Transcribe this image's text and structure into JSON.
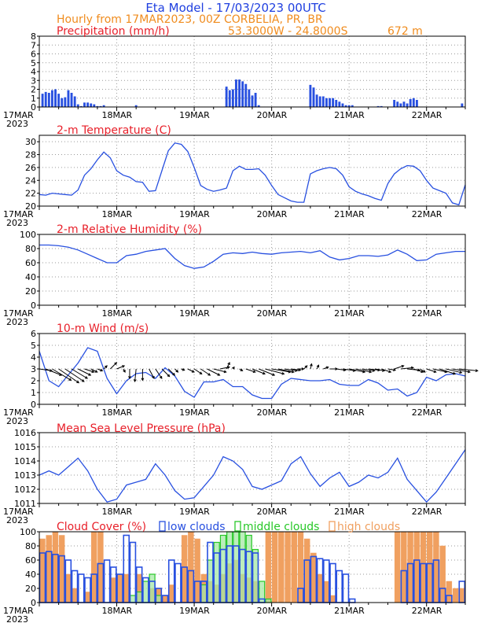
{
  "header": {
    "title": "Eta Model - 17/03/2023 00UTC",
    "subtitle": "Hourly from 17MAR2023, 00Z  CORBELIA, PR, BR",
    "location": "53.3000W - 24.8000S",
    "elevation": "672  m"
  },
  "colors": {
    "title": "#2040e0",
    "orange": "#f08c1e",
    "red": "#e8202a",
    "line": "#2850e0",
    "bar": "#2850e0",
    "low": "#2850e0",
    "mid": "#28c828",
    "high": "#f0a060",
    "grid": "#9a9a9a",
    "arrow": "#000000"
  },
  "x_axis": {
    "hours": 132,
    "day_labels": [
      "17MAR",
      "18MAR",
      "19MAR",
      "20MAR",
      "21MAR",
      "22MAR"
    ],
    "day_hours": [
      0,
      24,
      48,
      72,
      96,
      120
    ],
    "year_label": "2023"
  },
  "chart_data": [
    {
      "id": "precip",
      "type": "bar",
      "title": "Precipitation (mm/h)",
      "ylabel": "mm/h",
      "ylim": [
        0,
        8
      ],
      "yticks": [
        0,
        1,
        2,
        3,
        4,
        5,
        6,
        7,
        8
      ],
      "x": [
        1,
        2,
        3,
        4,
        5,
        6,
        7,
        8,
        9,
        10,
        11,
        12,
        13,
        14,
        15,
        16,
        17,
        18,
        19,
        20,
        30,
        58,
        59,
        60,
        61,
        62,
        63,
        64,
        65,
        66,
        67,
        68,
        84,
        85,
        86,
        87,
        88,
        89,
        90,
        91,
        92,
        93,
        94,
        95,
        96,
        97,
        105,
        106,
        110,
        111,
        112,
        113,
        114,
        115,
        116,
        117,
        131
      ],
      "values": [
        1.5,
        1.7,
        1.6,
        1.9,
        2.0,
        1.5,
        1.0,
        1.1,
        1.9,
        1.6,
        1.2,
        0.3,
        0.1,
        0.5,
        0.5,
        0.4,
        0.3,
        0.1,
        0.1,
        0.2,
        0.2,
        2.3,
        1.9,
        2.0,
        3.1,
        3.1,
        2.9,
        2.6,
        2.0,
        1.3,
        1.6,
        0.2,
        2.5,
        2.2,
        1.4,
        1.2,
        1.2,
        1.0,
        1.0,
        1.0,
        0.8,
        0.6,
        0.4,
        0.2,
        0.2,
        0.2,
        0.1,
        0.1,
        0.8,
        0.6,
        0.4,
        0.6,
        0.4,
        0.9,
        1.0,
        0.8,
        0.4
      ]
    },
    {
      "id": "temperature",
      "type": "line",
      "title": "2-m Temperature (C)",
      "ylim": [
        20,
        31
      ],
      "yticks": [
        20,
        22,
        24,
        26,
        28,
        30
      ],
      "x": [
        0,
        2,
        4,
        6,
        8,
        10,
        12,
        14,
        16,
        18,
        20,
        22,
        24,
        26,
        28,
        30,
        32,
        34,
        36,
        38,
        40,
        42,
        44,
        46,
        48,
        50,
        52,
        54,
        56,
        58,
        60,
        62,
        64,
        66,
        68,
        70,
        72,
        74,
        76,
        78,
        80,
        82,
        84,
        86,
        88,
        90,
        92,
        94,
        96,
        98,
        100,
        102,
        104,
        106,
        108,
        110,
        112,
        114,
        116,
        118,
        120,
        122,
        124,
        126,
        128,
        130,
        132
      ],
      "values": [
        21.8,
        21.7,
        22.0,
        21.9,
        21.8,
        21.7,
        22.5,
        24.8,
        25.8,
        27.2,
        28.4,
        27.5,
        25.5,
        24.8,
        24.5,
        23.8,
        23.7,
        22.3,
        22.4,
        25.5,
        28.6,
        29.8,
        29.6,
        28.5,
        26.0,
        23.2,
        22.6,
        22.3,
        22.5,
        22.8,
        25.5,
        26.2,
        25.7,
        25.7,
        25.8,
        24.8,
        23.2,
        21.8,
        21.3,
        20.8,
        20.6,
        20.6,
        25.0,
        25.5,
        25.8,
        26.0,
        25.8,
        24.8,
        23.0,
        22.3,
        21.9,
        21.6,
        21.2,
        20.9,
        23.5,
        25.0,
        25.8,
        26.3,
        26.2,
        25.5,
        24.0,
        22.8,
        22.4,
        22.0,
        20.5,
        20.2,
        23.3
      ]
    },
    {
      "id": "humidity",
      "type": "line",
      "title": "2-m Relative Humidity (%)",
      "ylim": [
        0,
        100
      ],
      "yticks": [
        0,
        20,
        40,
        60,
        80,
        100
      ],
      "x": [
        0,
        3,
        6,
        9,
        12,
        15,
        18,
        21,
        24,
        27,
        30,
        33,
        36,
        39,
        42,
        45,
        48,
        51,
        54,
        57,
        60,
        63,
        66,
        69,
        72,
        75,
        78,
        81,
        84,
        87,
        90,
        93,
        96,
        99,
        102,
        105,
        108,
        111,
        114,
        117,
        120,
        123,
        126,
        129,
        132
      ],
      "values": [
        85,
        85,
        84,
        82,
        78,
        72,
        66,
        60,
        60,
        70,
        72,
        76,
        78,
        80,
        66,
        56,
        52,
        54,
        62,
        72,
        74,
        73,
        75,
        73,
        72,
        74,
        75,
        76,
        74,
        77,
        68,
        64,
        66,
        70,
        70,
        69,
        71,
        78,
        72,
        63,
        64,
        72,
        74,
        76,
        76
      ]
    },
    {
      "id": "wind",
      "type": "line",
      "title": "10-m Wind (m/s)",
      "ylim": [
        0,
        6
      ],
      "yticks": [
        0,
        1,
        2,
        3,
        4,
        5,
        6
      ],
      "x": [
        0,
        3,
        6,
        9,
        12,
        15,
        18,
        21,
        24,
        27,
        30,
        33,
        36,
        39,
        42,
        45,
        48,
        51,
        54,
        57,
        60,
        63,
        66,
        69,
        72,
        75,
        78,
        81,
        84,
        87,
        90,
        93,
        96,
        99,
        102,
        105,
        108,
        111,
        114,
        117,
        120,
        123,
        126,
        129,
        132
      ],
      "values": [
        4.5,
        2.0,
        1.5,
        2.5,
        3.5,
        4.8,
        4.5,
        2.2,
        0.9,
        2.0,
        2.6,
        2.7,
        2.2,
        3.1,
        2.4,
        1.1,
        0.6,
        1.9,
        1.9,
        2.1,
        1.5,
        1.5,
        0.8,
        0.5,
        0.5,
        1.7,
        2.2,
        2.1,
        2.0,
        2.0,
        2.1,
        1.7,
        1.6,
        1.6,
        2.1,
        1.8,
        1.2,
        1.3,
        0.7,
        1.0,
        2.3,
        2.0,
        2.5,
        2.6,
        2.4
      ]
    },
    {
      "id": "pressure",
      "type": "line",
      "title": "Mean Sea Level Pressure (hPa)",
      "ylim": [
        1011,
        1016
      ],
      "yticks": [
        1011,
        1012,
        1013,
        1014,
        1015,
        1016
      ],
      "x": [
        0,
        3,
        6,
        9,
        12,
        15,
        18,
        21,
        24,
        27,
        30,
        33,
        36,
        39,
        42,
        45,
        48,
        51,
        54,
        57,
        60,
        63,
        66,
        69,
        72,
        75,
        78,
        81,
        84,
        87,
        90,
        93,
        96,
        99,
        102,
        105,
        108,
        111,
        114,
        117,
        120,
        123,
        126,
        129,
        132
      ],
      "values": [
        1013.0,
        1013.3,
        1013.0,
        1013.6,
        1014.2,
        1013.3,
        1012.0,
        1011.1,
        1011.3,
        1012.3,
        1012.5,
        1012.7,
        1013.8,
        1013.0,
        1011.9,
        1011.3,
        1011.4,
        1012.2,
        1013.0,
        1014.3,
        1014.0,
        1013.4,
        1012.2,
        1012.0,
        1012.3,
        1012.6,
        1013.8,
        1014.3,
        1013.1,
        1012.2,
        1012.8,
        1013.2,
        1012.2,
        1012.5,
        1013.0,
        1012.8,
        1013.2,
        1014.2,
        1012.7,
        1011.9,
        1011.1,
        1011.8,
        1012.8,
        1013.8,
        1014.8
      ]
    },
    {
      "id": "clouds",
      "type": "bar",
      "title": "Cloud Cover (%)",
      "ylim": [
        0,
        100
      ],
      "yticks": [
        0,
        20,
        40,
        60,
        80,
        100
      ],
      "legend": [
        "low clouds",
        "middle clouds",
        "high clouds"
      ],
      "x": [
        0,
        2,
        4,
        6,
        8,
        10,
        12,
        14,
        16,
        18,
        20,
        22,
        24,
        26,
        28,
        30,
        32,
        34,
        36,
        38,
        40,
        42,
        44,
        46,
        48,
        50,
        52,
        54,
        56,
        58,
        60,
        62,
        64,
        66,
        68,
        70,
        72,
        74,
        76,
        78,
        80,
        82,
        84,
        86,
        88,
        90,
        92,
        94,
        96,
        98,
        100,
        102,
        104,
        106,
        108,
        110,
        112,
        114,
        116,
        118,
        120,
        122,
        124,
        126,
        128,
        130
      ],
      "series": [
        {
          "name": "high clouds",
          "values": [
            90,
            95,
            100,
            95,
            40,
            20,
            0,
            15,
            100,
            100,
            0,
            35,
            40,
            40,
            0,
            40,
            0,
            20,
            20,
            10,
            25,
            0,
            95,
            100,
            90,
            40,
            30,
            25,
            40,
            55,
            60,
            40,
            35,
            30,
            0,
            100,
            100,
            100,
            100,
            100,
            100,
            90,
            70,
            40,
            30,
            10,
            0,
            0,
            0,
            0,
            0,
            0,
            0,
            0,
            0,
            100,
            100,
            100,
            100,
            100,
            100,
            100,
            80,
            30,
            20,
            20
          ]
        },
        {
          "name": "middle clouds",
          "values": [
            0,
            0,
            0,
            0,
            0,
            0,
            0,
            0,
            0,
            0,
            0,
            0,
            0,
            0,
            10,
            15,
            30,
            40,
            10,
            0,
            0,
            0,
            0,
            0,
            0,
            25,
            60,
            85,
            95,
            100,
            100,
            100,
            95,
            75,
            30,
            5,
            0,
            0,
            0,
            0,
            0,
            0,
            0,
            0,
            0,
            0,
            0,
            0,
            0,
            0,
            0,
            0,
            0,
            0,
            0,
            0,
            0,
            0,
            0,
            0,
            0,
            0,
            0,
            0,
            0,
            0
          ]
        },
        {
          "name": "low clouds",
          "values": [
            70,
            72,
            68,
            66,
            60,
            45,
            40,
            35,
            40,
            55,
            60,
            50,
            40,
            95,
            85,
            50,
            35,
            30,
            20,
            10,
            60,
            55,
            50,
            45,
            30,
            30,
            85,
            70,
            75,
            80,
            80,
            75,
            72,
            70,
            5,
            0,
            0,
            0,
            0,
            0,
            20,
            60,
            65,
            62,
            60,
            55,
            45,
            40,
            5,
            0,
            0,
            0,
            0,
            0,
            0,
            0,
            45,
            55,
            60,
            55,
            55,
            60,
            20,
            10,
            0,
            30
          ]
        }
      ]
    }
  ],
  "wind_vectors": {
    "x": [
      0,
      2,
      4,
      6,
      8,
      10,
      12,
      14,
      16,
      18,
      20,
      22,
      24,
      26,
      28,
      30,
      32,
      34,
      36,
      38,
      40,
      42,
      44,
      46,
      48,
      50,
      52,
      54,
      56,
      58,
      60,
      62,
      64,
      66,
      68,
      70,
      72,
      74,
      76,
      78,
      80,
      82,
      84,
      86,
      88,
      90,
      92,
      94,
      96,
      98,
      100,
      102,
      104,
      106,
      108,
      110,
      112,
      114,
      116,
      118,
      120,
      122,
      124,
      126,
      128,
      130
    ],
    "u": [
      2.0,
      2.5,
      3.0,
      3.2,
      3.0,
      2.5,
      2.0,
      1.5,
      1.0,
      0.8,
      0.5,
      1.0,
      1.2,
      0.3,
      0.0,
      -0.2,
      0.0,
      0.8,
      1.0,
      1.2,
      1.0,
      0.5,
      0.5,
      1.0,
      1.2,
      1.5,
      2.0,
      2.0,
      1.5,
      0.5,
      0.2,
      0.5,
      1.5,
      2.0,
      2.5,
      3.0,
      3.0,
      2.5,
      2.0,
      1.5,
      1.0,
      0.5,
      0.2,
      0.3,
      0.8,
      1.2,
      1.5,
      2.0,
      2.5,
      2.5,
      2.0,
      1.8,
      1.5,
      1.5,
      1.2,
      1.5,
      2.0,
      2.0,
      1.5,
      0.8,
      1.5,
      2.2,
      2.5,
      2.5,
      2.8,
      3.0
    ],
    "v": [
      -0.3,
      -1.0,
      -1.8,
      -2.2,
      -2.0,
      -1.5,
      -1.0,
      -0.5,
      -0.5,
      -0.3,
      0.5,
      1.0,
      0.5,
      -0.5,
      -1.5,
      -2.0,
      -1.8,
      -1.5,
      -1.5,
      -1.2,
      -1.0,
      -0.5,
      -0.2,
      -0.5,
      -0.8,
      -1.0,
      -1.0,
      -0.5,
      0.3,
      1.0,
      0.3,
      -0.3,
      -0.5,
      -0.8,
      -1.0,
      -0.8,
      -0.5,
      -0.5,
      -0.3,
      -0.2,
      0.0,
      0.5,
      0.8,
      0.6,
      0.3,
      0.0,
      -0.2,
      -0.3,
      -0.5,
      -0.5,
      -0.3,
      -0.2,
      -0.3,
      -0.5,
      -0.2,
      0.5,
      0.2,
      -0.2,
      -0.5,
      -0.5,
      -0.5,
      -0.5,
      -0.8,
      -0.6,
      -0.5,
      -0.3
    ]
  }
}
